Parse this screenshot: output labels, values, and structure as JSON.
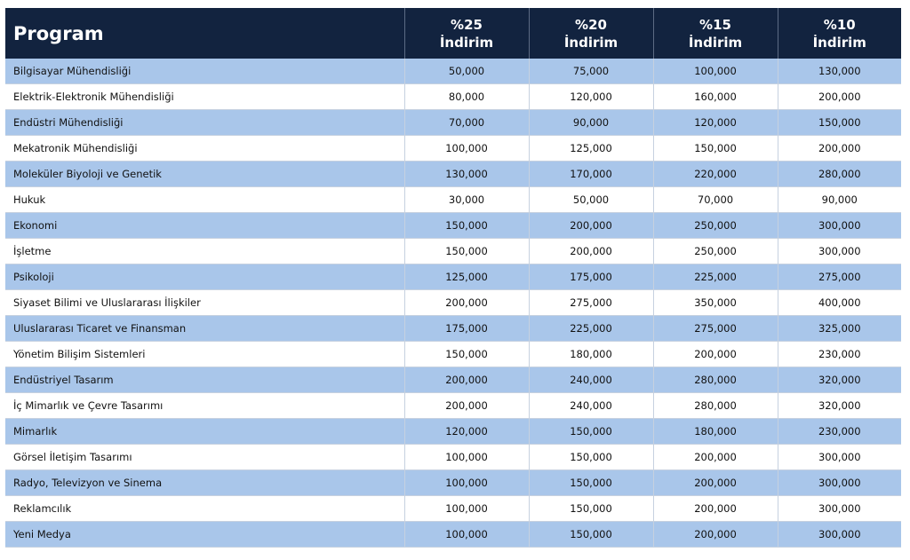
{
  "table": {
    "headers": [
      {
        "pct": "Program",
        "lbl": ""
      },
      {
        "pct": "%25",
        "lbl": "İndirim"
      },
      {
        "pct": "%20",
        "lbl": "İndirim"
      },
      {
        "pct": "%15",
        "lbl": "İndirim"
      },
      {
        "pct": "%10",
        "lbl": "İndirim"
      }
    ],
    "rows": [
      [
        "Bilgisayar Mühendisliği",
        "50,000",
        "75,000",
        "100,000",
        "130,000"
      ],
      [
        "Elektrik-Elektronik Mühendisliği",
        "80,000",
        "120,000",
        "160,000",
        "200,000"
      ],
      [
        "Endüstri Mühendisliği",
        "70,000",
        "90,000",
        "120,000",
        "150,000"
      ],
      [
        "Mekatronik Mühendisliği",
        "100,000",
        "125,000",
        "150,000",
        "200,000"
      ],
      [
        "Moleküler Biyoloji ve Genetik",
        "130,000",
        "170,000",
        "220,000",
        "280,000"
      ],
      [
        "Hukuk",
        "30,000",
        "50,000",
        "70,000",
        "90,000"
      ],
      [
        "Ekonomi",
        "150,000",
        "200,000",
        "250,000",
        "300,000"
      ],
      [
        "İşletme",
        "150,000",
        "200,000",
        "250,000",
        "300,000"
      ],
      [
        "Psikoloji",
        "125,000",
        "175,000",
        "225,000",
        "275,000"
      ],
      [
        "Siyaset Bilimi ve Uluslararası İlişkiler",
        "200,000",
        "275,000",
        "350,000",
        "400,000"
      ],
      [
        "Uluslararası Ticaret ve Finansman",
        "175,000",
        "225,000",
        "275,000",
        "325,000"
      ],
      [
        "Yönetim Bilişim Sistemleri",
        "150,000",
        "180,000",
        "200,000",
        "230,000"
      ],
      [
        "Endüstriyel Tasarım",
        "200,000",
        "240,000",
        "280,000",
        "320,000"
      ],
      [
        "İç Mimarlık ve Çevre Tasarımı",
        "200,000",
        "240,000",
        "280,000",
        "320,000"
      ],
      [
        "Mimarlık",
        "120,000",
        "150,000",
        "180,000",
        "230,000"
      ],
      [
        "Görsel İletişim Tasarımı",
        "100,000",
        "150,000",
        "200,000",
        "300,000"
      ],
      [
        "Radyo, Televizyon ve Sinema",
        "100,000",
        "150,000",
        "200,000",
        "300,000"
      ],
      [
        "Reklamcılık",
        "100,000",
        "150,000",
        "200,000",
        "300,000"
      ],
      [
        "Yeni Medya",
        "100,000",
        "150,000",
        "200,000",
        "300,000"
      ]
    ]
  },
  "colors": {
    "header_bg": "#12233f",
    "header_text": "#ffffff",
    "stripe_blue": "#a9c6ea",
    "stripe_white": "#ffffff"
  }
}
